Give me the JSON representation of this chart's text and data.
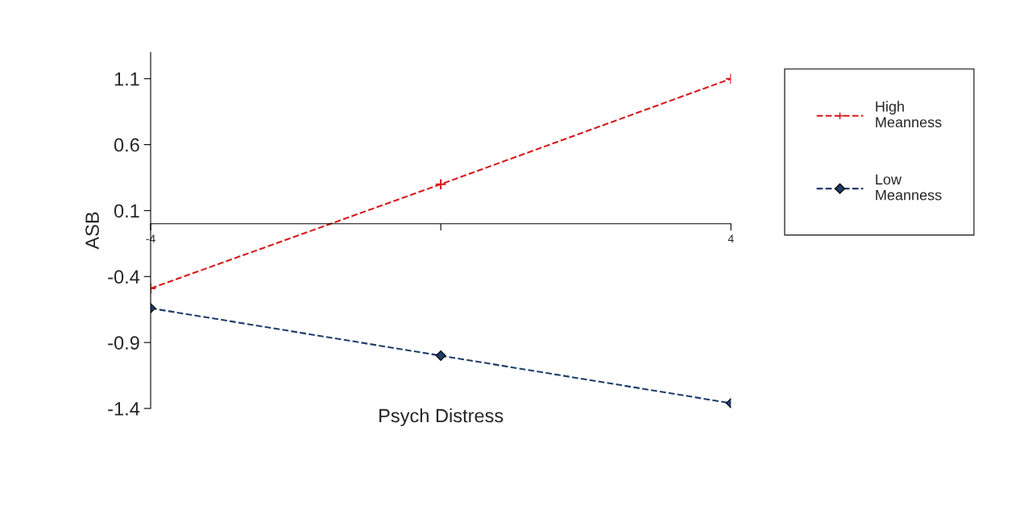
{
  "chart_data": {
    "type": "line",
    "xlabel": "Psych Distress",
    "ylabel": "ASB",
    "categories": [
      "-4",
      null,
      "4"
    ],
    "ylim": [
      -1.4,
      1.3
    ],
    "yticks": [
      -1.4,
      -0.9,
      -0.4,
      0.1,
      0.6,
      1.1
    ],
    "grid": false,
    "legend": "right",
    "line_style": "dashed",
    "series": [
      {
        "name": "High\nMeanness",
        "color": "#d7191c",
        "marker": "cross",
        "values": [
          -0.49,
          0.3,
          1.1
        ]
      },
      {
        "name": "Low\nMeanness",
        "color": "#1f3d6b",
        "marker": "diamond",
        "values": [
          -0.64,
          -1.0,
          -1.36
        ]
      }
    ]
  }
}
